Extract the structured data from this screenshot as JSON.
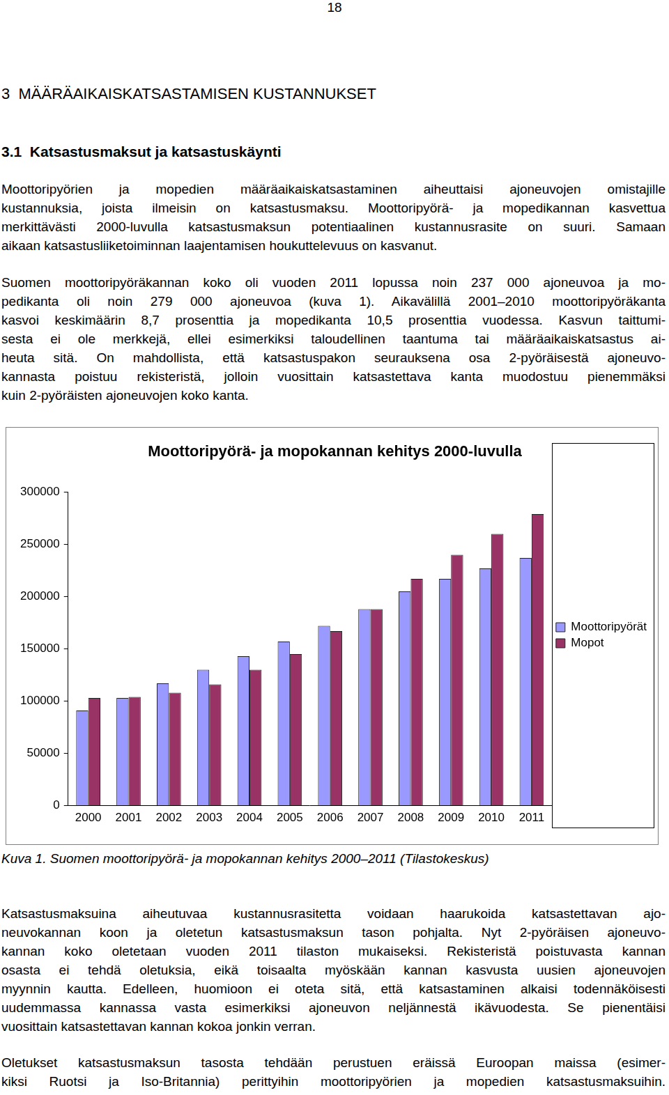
{
  "page": {
    "page_number": "18",
    "heading": "3  MÄÄRÄAIKAISKATSASTAMISEN KUSTANNUKSET",
    "subheading": "3.1  Katsastusmaksut ja katsastuskäynti",
    "paragraphs_before": [
      [
        "Moottoripyörien ja mopedien määräaikaiskatsastaminen aiheuttaisi ajoneuvojen omistajille",
        "kustannuksia, joista ilmeisin on katsastusmaksu. Moottoripyörä- ja mopedikannan kasvettua",
        "merkittävästi 2000-luvulla katsastusmaksun potentiaalinen kustannusrasite on suuri. Samaan",
        "aikaan katsastusliiketoiminnan laajentamisen houkuttelevuus on kasvanut."
      ],
      [
        "Suomen moottoripyöräkannan koko oli vuoden 2011 lopussa noin 237 000 ajoneuvoa ja mo-",
        "pedikanta oli noin 279 000 ajoneuvoa (kuva 1). Aikavälillä 2001–2010 moottoripyöräkanta",
        "kasvoi keskimäärin 8,7 prosenttia ja mopedikanta 10,5 prosenttia vuodessa. Kasvun taittumi-",
        "sesta ei ole merkkejä, ellei esimerkiksi taloudellinen taantuma tai määräaikaiskatsastus ai-",
        "heuta sitä. On mahdollista, että katsastuspakon seurauksena osa 2-pyöräisestä ajoneuvo-",
        "kannasta poistuu rekisteristä, jolloin vuosittain katsastettava kanta muodostuu pienemmäksi",
        "kuin 2-pyöräisten ajoneuvojen koko kanta."
      ]
    ],
    "caption": "Kuva 1. Suomen moottoripyörä- ja mopokannan kehitys 2000–2011 (Tilastokeskus)",
    "paragraphs_after": [
      [
        "Katsastusmaksuina aiheutuvaa kustannusrasitetta voidaan haarukoida katsastettavan ajo-",
        "neuvokannan koon ja oletetun katsastusmaksun tason pohjalta. Nyt 2-pyöräisen ajoneuvo-",
        "kannan koko oletetaan vuoden 2011 tilaston mukaiseksi. Rekisteristä poistuvasta kannan",
        "osasta ei tehdä oletuksia, eikä toisaalta myöskään kannan kasvusta uusien ajoneuvojen",
        "myynnin kautta. Edelleen, huomioon ei oteta sitä, että katsastaminen alkaisi todennäköisesti",
        "uudemmassa kannassa vasta esimerkiksi ajoneuvon neljännestä ikävuodesta. Se pienentäisi",
        "vuosittain katsastettavan kannan kokoa jonkin verran."
      ],
      [
        "Oletukset katsastusmaksun tasosta tehdään perustuen eräissä Euroopan maissa (esimer-",
        "kiksi Ruotsi ja Iso-Britannia) perittyihin moottoripyörien ja mopedien katsastusmaksuihin."
      ]
    ]
  },
  "chart_data": {
    "type": "bar",
    "title": "Moottoripyörä- ja mopokannan kehitys 2000-luvulla",
    "categories": [
      "2000",
      "2001",
      "2002",
      "2003",
      "2004",
      "2005",
      "2006",
      "2007",
      "2008",
      "2009",
      "2010",
      "2011"
    ],
    "series": [
      {
        "name": "Moottoripyörät",
        "color": "#9999ff",
        "values": [
          91000,
          103000,
          117000,
          130000,
          143000,
          157000,
          172000,
          188000,
          205000,
          217000,
          227000,
          237000
        ]
      },
      {
        "name": "Mopot",
        "color": "#993366",
        "values": [
          103000,
          104000,
          108000,
          116000,
          130000,
          145000,
          167000,
          188000,
          217000,
          240000,
          260000,
          279000
        ]
      }
    ],
    "ylim": [
      0,
      300000
    ],
    "yticks": [
      0,
      50000,
      100000,
      150000,
      200000,
      250000,
      300000
    ],
    "grid": false,
    "legend": "right"
  }
}
